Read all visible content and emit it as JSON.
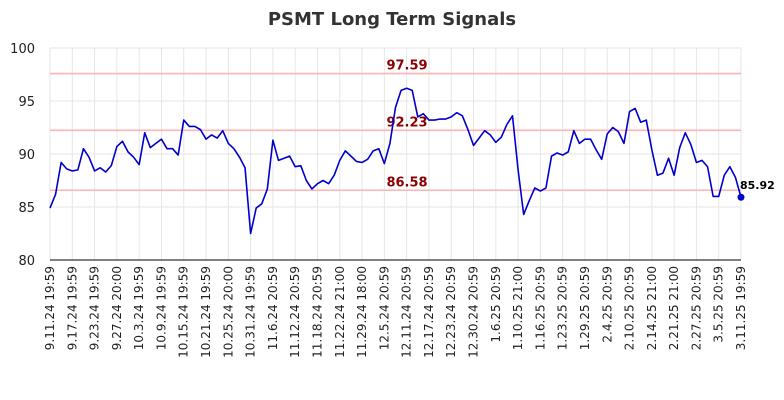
{
  "chart_data": {
    "type": "line",
    "title": "PSMT Long Term Signals",
    "xlabel": "",
    "ylabel": "",
    "ylim": [
      80,
      100
    ],
    "yticks": [
      "80",
      "85",
      "90",
      "95",
      "100"
    ],
    "grid": true,
    "legend": "none",
    "colors": {
      "line": "#0000cc",
      "ref_line": "#ffb3b3",
      "ref_label": "#8b0000",
      "last_point": "#0000cc"
    },
    "x_tick_labels": [
      "9.11.24 19:59",
      "9.17.24 19:59",
      "9.23.24 19:59",
      "9.27.24 20:00",
      "10.3.24 19:59",
      "10.9.24 19:59",
      "10.15.24 19:59",
      "10.21.24 19:59",
      "10.25.24 20:00",
      "10.31.24 19:59",
      "11.6.24 20:59",
      "11.12.24 20:59",
      "11.18.24 20:59",
      "11.22.24 21:00",
      "11.29.24 18:00",
      "12.5.24 20:59",
      "12.11.24 20:59",
      "12.17.24 20:59",
      "12.23.24 20:59",
      "12.30.24 20:59",
      "1.6.25 20:59",
      "1.10.25 21:00",
      "1.16.25 20:59",
      "1.23.25 20:59",
      "1.29.25 20:59",
      "2.4.25 20:59",
      "2.10.25 20:59",
      "2.14.25 21:00",
      "2.21.25 21:00",
      "2.27.25 20:59",
      "3.5.25 20:59",
      "3.11.25 19:59"
    ],
    "reference_lines": [
      {
        "value": 97.59,
        "label": "97.59"
      },
      {
        "value": 92.23,
        "label": "92.23"
      },
      {
        "value": 86.58,
        "label": "86.58"
      }
    ],
    "last_value_label": "85.92",
    "series": [
      {
        "values": [
          84.9,
          86.2,
          89.2,
          88.6,
          88.4,
          88.5,
          90.5,
          89.7,
          88.4,
          88.7,
          88.3,
          88.9,
          90.7,
          91.2,
          90.2,
          89.7,
          89.0,
          92.0,
          90.6,
          91.0,
          91.4,
          90.5,
          90.5,
          89.9,
          93.2,
          92.6,
          92.6,
          92.3,
          91.4,
          91.8,
          91.5,
          92.2,
          91.0,
          90.5,
          89.7,
          88.7,
          82.5,
          84.9,
          85.3,
          86.7,
          91.3,
          89.4,
          89.6,
          89.8,
          88.8,
          88.9,
          87.5,
          86.7,
          87.2,
          87.5,
          87.2,
          88.0,
          89.4,
          90.3,
          89.8,
          89.3,
          89.2,
          89.5,
          90.3,
          90.5,
          89.1,
          91.0,
          94.4,
          96.0,
          96.2,
          96.0,
          93.5,
          93.8,
          93.2,
          93.2,
          93.3,
          93.3,
          93.5,
          93.9,
          93.6,
          92.3,
          90.8,
          91.5,
          92.2,
          91.8,
          91.1,
          91.6,
          92.8,
          93.6,
          88.5,
          84.3,
          85.6,
          86.8,
          86.5,
          86.8,
          89.8,
          90.1,
          89.9,
          90.2,
          92.2,
          91.0,
          91.4,
          91.4,
          90.4,
          89.5,
          91.9,
          92.5,
          92.1,
          91.0,
          94.0,
          94.3,
          93.0,
          93.2,
          90.4,
          88.0,
          88.2,
          89.6,
          88.0,
          90.6,
          92.0,
          90.9,
          89.2,
          89.4,
          88.8,
          86.0,
          86.0,
          88.0,
          88.8,
          87.8,
          85.92
        ]
      }
    ]
  }
}
